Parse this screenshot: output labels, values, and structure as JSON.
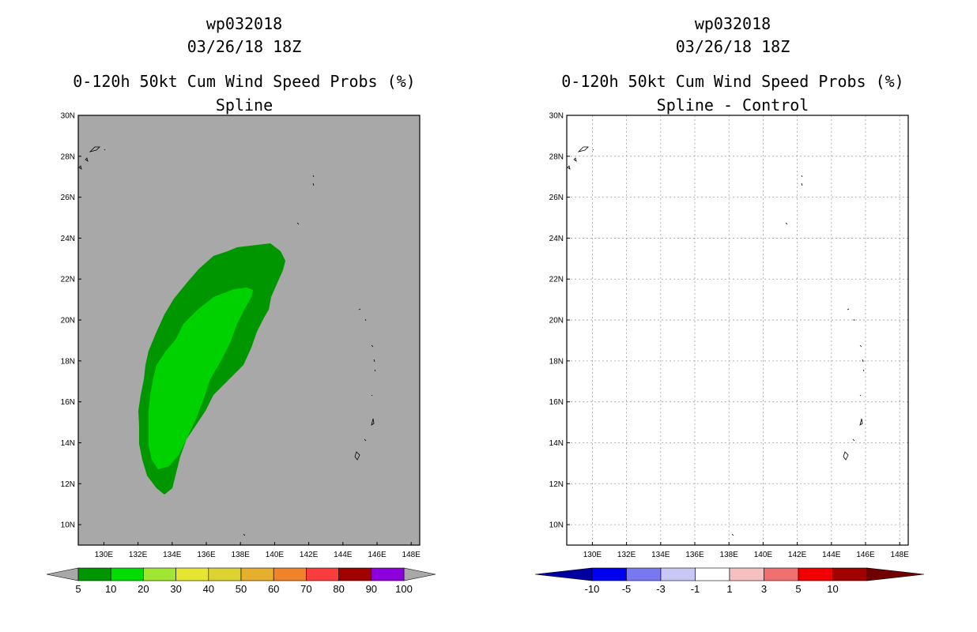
{
  "colors": {
    "land_gray": "#a8a8a8",
    "prob_5": "#009600",
    "prob_10": "#00d200",
    "grid": "#a0a0a0"
  },
  "panels": [
    {
      "title_line1": "wp032018",
      "title_line2": "03/26/18 18Z",
      "title_line3": "0-120h 50kt Cum Wind Speed Probs (%)",
      "title_line4": "Spline"
    },
    {
      "title_line1": "wp032018",
      "title_line2": "03/26/18 18Z",
      "title_line3": "0-120h 50kt Cum Wind Speed Probs (%)",
      "title_line4": "Spline - Control"
    }
  ],
  "chart_data": [
    {
      "type": "heatmap",
      "title": "0-120h 50kt Cum Wind Speed Probs (%) Spline",
      "x_ticks": [
        "130E",
        "132E",
        "134E",
        "136E",
        "138E",
        "140E",
        "142E",
        "144E",
        "146E",
        "148E"
      ],
      "y_ticks": [
        "10N",
        "12N",
        "14N",
        "16N",
        "18N",
        "20N",
        "22N",
        "24N",
        "26N",
        "28N",
        "30N"
      ],
      "xlim": [
        128.5,
        148.5
      ],
      "ylim": [
        9,
        30
      ],
      "grid": false,
      "colorbar": {
        "labels": [
          "5",
          "10",
          "20",
          "30",
          "40",
          "50",
          "60",
          "70",
          "80",
          "90",
          "100"
        ],
        "colors": [
          "#009600",
          "#00dc00",
          "#a0e632",
          "#e6e632",
          "#dcd232",
          "#e6af2d",
          "#f08228",
          "#fa3c3c",
          "#a00000",
          "#8c00dc"
        ]
      },
      "contours": [
        {
          "level": "5-10%",
          "color": "#009600",
          "region": "elongated band from ~11.5N 133.5E to ~23.8N 140.5E"
        },
        {
          "level": "10-20%",
          "color": "#00d200",
          "region": "inner band from ~12.8N 133.5E to ~21.6N 139.0E"
        }
      ]
    },
    {
      "type": "heatmap",
      "title": "0-120h 50kt Cum Wind Speed Probs (%) Spline - Control",
      "x_ticks": [
        "130E",
        "132E",
        "134E",
        "136E",
        "138E",
        "140E",
        "142E",
        "144E",
        "146E",
        "148E"
      ],
      "y_ticks": [
        "10N",
        "12N",
        "14N",
        "16N",
        "18N",
        "20N",
        "22N",
        "24N",
        "26N",
        "28N",
        "30N"
      ],
      "xlim": [
        128.5,
        148.5
      ],
      "ylim": [
        9,
        30
      ],
      "grid": true,
      "colorbar": {
        "labels": [
          "-10",
          "-5",
          "-3",
          "-1",
          "1",
          "3",
          "5",
          "10"
        ],
        "colors": [
          "#0000a0",
          "#0000f0",
          "#7878f0",
          "#c8c8f5",
          "#ffffff",
          "#f5c0c0",
          "#f07070",
          "#f00000",
          "#a00000",
          "#700000"
        ]
      }
    }
  ]
}
